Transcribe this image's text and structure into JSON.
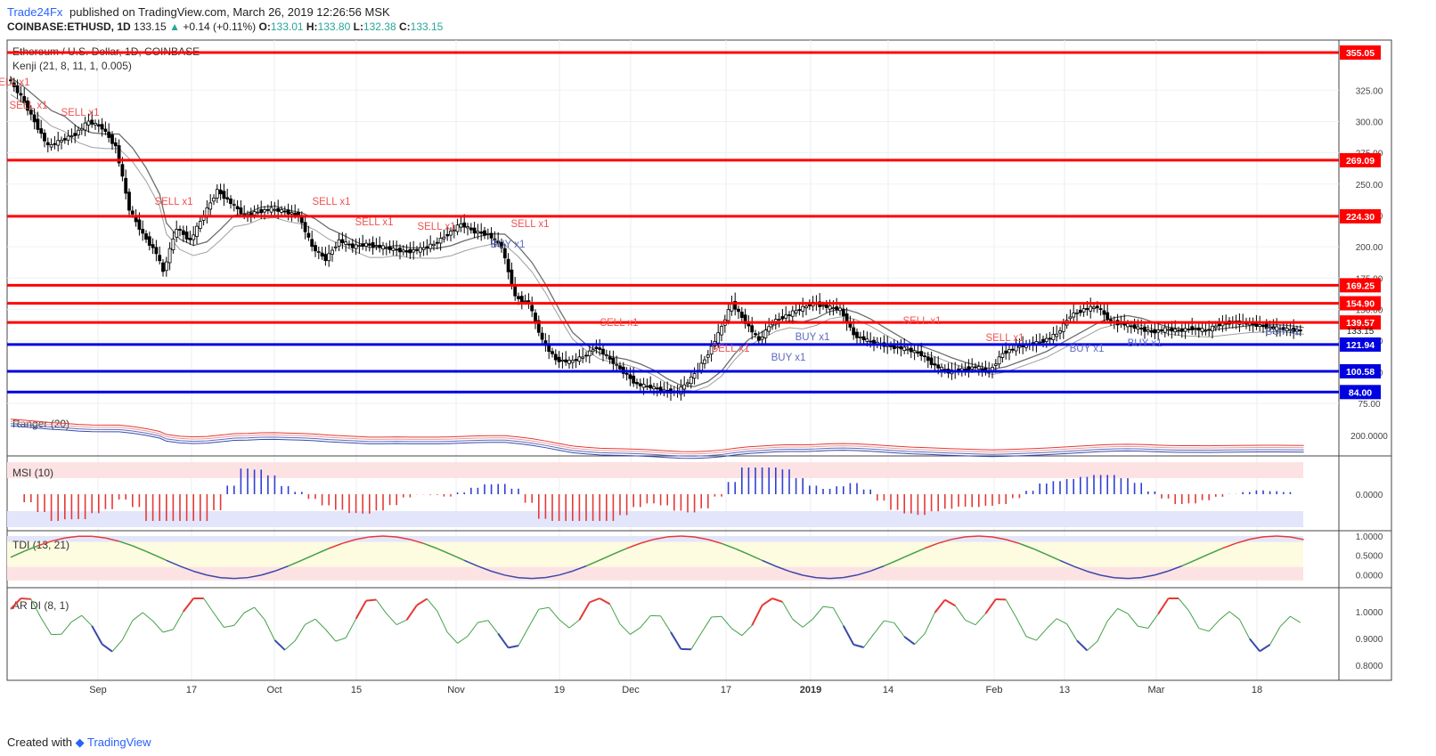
{
  "header": {
    "publisher": "Trade24Fx",
    "published_text": "published on TradingView.com, March 26, 2019 12:26:56 MSK",
    "symbol": "COINBASE:ETHUSD, 1D",
    "last": "133.15",
    "change": "+0.14 (+0.11%)",
    "o_label": "O:",
    "o_val": "133.01",
    "h_label": "H:",
    "h_val": "133.80",
    "l_label": "L:",
    "l_val": "132.38",
    "c_label": "C:",
    "c_val": "133.15"
  },
  "footer": {
    "created_with": "Created with",
    "brand": "TradingView"
  },
  "chart_data": {
    "type": "candlestick",
    "title": "Ethereum / U.S. Dollar, 1D, COINBASE",
    "indicator_label": "Kenji (21, 8, 11, 1, 0.005)",
    "y_ticks": [
      "325.00",
      "300.00",
      "275.00",
      "250.00",
      "225.00",
      "200.00",
      "175.00",
      "150.00",
      "125.00",
      "100.00",
      "75.00"
    ],
    "ylim": [
      70,
      365
    ],
    "last_price": "133.15",
    "x_labels": [
      "Sep",
      "17",
      "Oct",
      "15",
      "Nov",
      "19",
      "Dec",
      "17",
      "2019",
      "14",
      "Feb",
      "13",
      "Mar",
      "18"
    ],
    "resistance_levels": [
      {
        "value": 355.05,
        "label": "355.05",
        "color": "#ff0000"
      },
      {
        "value": 269.09,
        "label": "269.09",
        "color": "#ff0000"
      },
      {
        "value": 224.3,
        "label": "224.30",
        "color": "#ff0000"
      },
      {
        "value": 169.25,
        "label": "169.25",
        "color": "#ff0000"
      },
      {
        "value": 154.9,
        "label": "154.90",
        "color": "#ff0000"
      },
      {
        "value": 139.57,
        "label": "139.57",
        "color": "#ff0000"
      }
    ],
    "support_levels": [
      {
        "value": 121.94,
        "label": "121.94",
        "color": "#0000e0"
      },
      {
        "value": 100.58,
        "label": "100.58",
        "color": "#0000e0"
      },
      {
        "value": 84.0,
        "label": "84.00",
        "color": "#0000e0"
      }
    ],
    "price_path": [
      [
        0,
        335
      ],
      [
        4,
        320
      ],
      [
        8,
        300
      ],
      [
        12,
        280
      ],
      [
        16,
        285
      ],
      [
        20,
        290
      ],
      [
        24,
        300
      ],
      [
        28,
        295
      ],
      [
        32,
        280
      ],
      [
        36,
        230
      ],
      [
        40,
        210
      ],
      [
        44,
        195
      ],
      [
        46,
        180
      ],
      [
        50,
        215
      ],
      [
        54,
        205
      ],
      [
        58,
        225
      ],
      [
        62,
        245
      ],
      [
        66,
        235
      ],
      [
        70,
        225
      ],
      [
        74,
        228
      ],
      [
        78,
        230
      ],
      [
        82,
        228
      ],
      [
        86,
        225
      ],
      [
        90,
        200
      ],
      [
        94,
        190
      ],
      [
        98,
        205
      ],
      [
        102,
        200
      ],
      [
        106,
        202
      ],
      [
        110,
        200
      ],
      [
        114,
        198
      ],
      [
        118,
        196
      ],
      [
        122,
        198
      ],
      [
        126,
        202
      ],
      [
        130,
        210
      ],
      [
        134,
        218
      ],
      [
        138,
        212
      ],
      [
        142,
        210
      ],
      [
        146,
        200
      ],
      [
        150,
        160
      ],
      [
        154,
        155
      ],
      [
        158,
        125
      ],
      [
        162,
        110
      ],
      [
        166,
        108
      ],
      [
        170,
        112
      ],
      [
        174,
        120
      ],
      [
        178,
        110
      ],
      [
        182,
        100
      ],
      [
        186,
        90
      ],
      [
        190,
        88
      ],
      [
        194,
        85
      ],
      [
        198,
        84
      ],
      [
        202,
        95
      ],
      [
        206,
        110
      ],
      [
        210,
        130
      ],
      [
        214,
        155
      ],
      [
        218,
        140
      ],
      [
        222,
        125
      ],
      [
        226,
        140
      ],
      [
        230,
        145
      ],
      [
        234,
        150
      ],
      [
        238,
        155
      ],
      [
        242,
        152
      ],
      [
        246,
        150
      ],
      [
        250,
        130
      ],
      [
        254,
        125
      ],
      [
        258,
        122
      ],
      [
        262,
        120
      ],
      [
        266,
        118
      ],
      [
        270,
        114
      ],
      [
        274,
        105
      ],
      [
        278,
        100
      ],
      [
        282,
        102
      ],
      [
        286,
        104
      ],
      [
        290,
        100
      ],
      [
        294,
        115
      ],
      [
        298,
        120
      ],
      [
        302,
        122
      ],
      [
        306,
        125
      ],
      [
        310,
        130
      ],
      [
        314,
        145
      ],
      [
        318,
        150
      ],
      [
        322,
        152
      ],
      [
        326,
        140
      ],
      [
        330,
        138
      ],
      [
        334,
        135
      ],
      [
        338,
        132
      ],
      [
        342,
        134
      ],
      [
        346,
        133
      ],
      [
        350,
        135
      ],
      [
        354,
        133
      ],
      [
        358,
        138
      ],
      [
        362,
        140
      ],
      [
        366,
        139
      ],
      [
        370,
        137
      ],
      [
        374,
        135
      ],
      [
        378,
        134
      ],
      [
        382,
        133
      ]
    ],
    "signal_labels": [
      {
        "text": "SELL x1",
        "x": 12,
        "y": 96,
        "color": "#ef5350"
      },
      {
        "text": "SELL x1",
        "x": 32,
        "y": 122,
        "color": "#ef5350"
      },
      {
        "text": "SELL x1",
        "x": 90,
        "y": 130,
        "color": "#ef5350"
      },
      {
        "text": "SELL x1",
        "x": 195,
        "y": 230,
        "color": "#ef5350"
      },
      {
        "text": "SELL x1",
        "x": 372,
        "y": 230,
        "color": "#ef5350"
      },
      {
        "text": "SELL x1",
        "x": 420,
        "y": 253,
        "color": "#ef5350"
      },
      {
        "text": "SELL x1",
        "x": 490,
        "y": 258,
        "color": "#ef5350"
      },
      {
        "text": "SELL x1",
        "x": 595,
        "y": 255,
        "color": "#ef5350"
      },
      {
        "text": "BUY x1",
        "x": 570,
        "y": 278,
        "color": "#5c6bc0"
      },
      {
        "text": "SELL x1",
        "x": 695,
        "y": 366,
        "color": "#ef5350"
      },
      {
        "text": "SELL x1",
        "x": 820,
        "y": 395,
        "color": "#ef5350"
      },
      {
        "text": "BUY x1",
        "x": 885,
        "y": 405,
        "color": "#5c6bc0"
      },
      {
        "text": "BUY x1",
        "x": 912,
        "y": 382,
        "color": "#5c6bc0"
      },
      {
        "text": "SELL x1",
        "x": 1035,
        "y": 364,
        "color": "#ef5350"
      },
      {
        "text": "SELL x1",
        "x": 1128,
        "y": 383,
        "color": "#ef5350"
      },
      {
        "text": "BUY x1",
        "x": 1220,
        "y": 395,
        "color": "#5c6bc0"
      },
      {
        "text": "BUY x1",
        "x": 1285,
        "y": 389,
        "color": "#5c6bc0"
      },
      {
        "text": "BUY x1",
        "x": 1440,
        "y": 376,
        "color": "#5c6bc0"
      }
    ],
    "ranger": {
      "label": "Ranger (20)",
      "tick": "200.0000"
    },
    "msi": {
      "label": "MSI (10)",
      "tick": "0.0000"
    },
    "tdi": {
      "label": "TDI (13, 21)",
      "ticks": [
        "1.0000",
        "0.5000",
        "0.0000"
      ]
    },
    "ardi": {
      "label": "AR DI (8, 1)",
      "ticks": [
        "1.0000",
        "0.9000",
        "0.8000"
      ]
    }
  }
}
